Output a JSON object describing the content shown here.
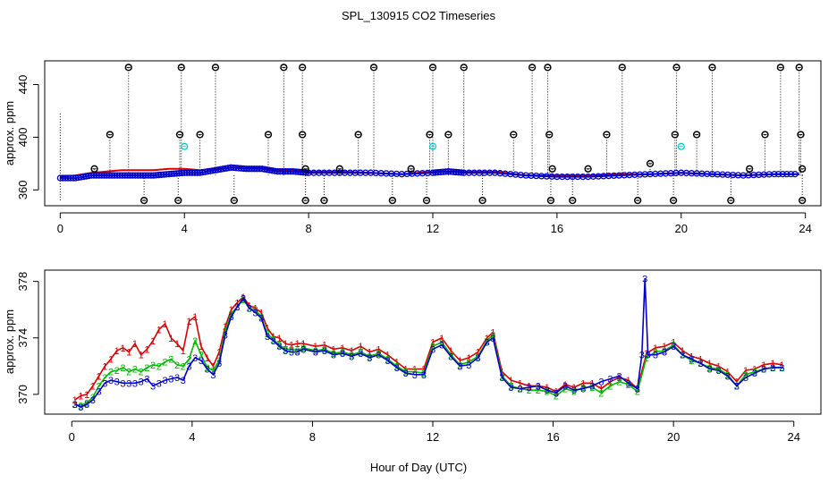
{
  "figure": {
    "title": "SPL_130915  CO2 Timeseries",
    "xlabel": "Hour of Day (UTC)"
  },
  "colors": {
    "ch1": "#dd0000",
    "ch2": "#00bb00",
    "ch3": "#0000cc",
    "flag": "#00cccc",
    "ref": "#000000"
  },
  "chart_data": [
    {
      "type": "scatter",
      "panel": "top",
      "ylabel": "approx. ppm",
      "xlim": [
        -0.5,
        24.5
      ],
      "ylim": [
        348,
        458
      ],
      "x_ticks": [
        "0",
        "4",
        "8",
        "12",
        "16",
        "20",
        "24"
      ],
      "x_tick_values": [
        0,
        4,
        8,
        12,
        16,
        20,
        24
      ],
      "y_ticks": [
        "360",
        "400",
        "440"
      ],
      "y_tick_values": [
        360,
        400,
        440
      ],
      "markers": [
        {
          "x": 1.1,
          "y": 376
        },
        {
          "x": 1.6,
          "y": 402
        },
        {
          "x": 2.2,
          "y": 453
        },
        {
          "x": 2.7,
          "y": 352
        },
        {
          "x": 3.8,
          "y": 352
        },
        {
          "x": 3.85,
          "y": 402
        },
        {
          "x": 3.9,
          "y": 453
        },
        {
          "x": 4.5,
          "y": 402
        },
        {
          "x": 5.0,
          "y": 453
        },
        {
          "x": 5.6,
          "y": 352
        },
        {
          "x": 6.7,
          "y": 402
        },
        {
          "x": 7.2,
          "y": 453
        },
        {
          "x": 7.8,
          "y": 453
        },
        {
          "x": 7.8,
          "y": 402
        },
        {
          "x": 7.9,
          "y": 352
        },
        {
          "x": 7.9,
          "y": 376
        },
        {
          "x": 8.5,
          "y": 352
        },
        {
          "x": 9.0,
          "y": 376
        },
        {
          "x": 9.6,
          "y": 402
        },
        {
          "x": 10.1,
          "y": 453
        },
        {
          "x": 10.7,
          "y": 352
        },
        {
          "x": 11.3,
          "y": 376
        },
        {
          "x": 11.8,
          "y": 352
        },
        {
          "x": 11.9,
          "y": 402
        },
        {
          "x": 12.0,
          "y": 453
        },
        {
          "x": 12.5,
          "y": 402
        },
        {
          "x": 13.0,
          "y": 453
        },
        {
          "x": 13.6,
          "y": 352
        },
        {
          "x": 14.6,
          "y": 402
        },
        {
          "x": 15.2,
          "y": 453
        },
        {
          "x": 15.7,
          "y": 453
        },
        {
          "x": 15.75,
          "y": 402
        },
        {
          "x": 15.8,
          "y": 352
        },
        {
          "x": 15.85,
          "y": 376
        },
        {
          "x": 16.5,
          "y": 352
        },
        {
          "x": 17.0,
          "y": 376
        },
        {
          "x": 17.6,
          "y": 402
        },
        {
          "x": 18.1,
          "y": 453
        },
        {
          "x": 18.6,
          "y": 352
        },
        {
          "x": 19.0,
          "y": 380
        },
        {
          "x": 19.8,
          "y": 402
        },
        {
          "x": 19.85,
          "y": 453
        },
        {
          "x": 19.75,
          "y": 352
        },
        {
          "x": 20.5,
          "y": 402
        },
        {
          "x": 21.0,
          "y": 453
        },
        {
          "x": 21.6,
          "y": 352
        },
        {
          "x": 22.2,
          "y": 376
        },
        {
          "x": 22.7,
          "y": 402
        },
        {
          "x": 23.2,
          "y": 453
        },
        {
          "x": 23.8,
          "y": 453
        },
        {
          "x": 23.85,
          "y": 402
        },
        {
          "x": 23.9,
          "y": 352
        },
        {
          "x": 23.9,
          "y": 376
        }
      ],
      "flags": [
        {
          "x": 4.0,
          "y": 393
        },
        {
          "x": 12.0,
          "y": 393
        },
        {
          "x": 20.0,
          "y": 393
        }
      ],
      "series": [
        {
          "key": "ch1",
          "x": [
            0,
            0.5,
            1,
            1.5,
            2,
            2.5,
            3,
            3.5,
            4,
            4.5,
            5,
            5.5,
            6,
            6.5,
            7,
            7.5,
            8,
            9,
            10,
            11,
            12,
            12.5,
            13,
            14,
            15,
            16,
            17,
            18,
            19,
            20,
            21,
            22,
            23,
            23.8
          ],
          "y": [
            370,
            371,
            373,
            374,
            375,
            375,
            375,
            376,
            376,
            375,
            376,
            377,
            377,
            377,
            375,
            375,
            374,
            374,
            373,
            372,
            374,
            374,
            374,
            374,
            371,
            371,
            371,
            372,
            372,
            373,
            372,
            371,
            372,
            372
          ]
        },
        {
          "key": "ch3",
          "x": [
            0,
            0.5,
            1,
            1.5,
            2,
            2.5,
            3,
            3.5,
            4,
            4.5,
            5,
            5.5,
            6,
            6.5,
            7,
            7.5,
            8,
            9,
            10,
            11,
            12,
            12.5,
            13,
            14,
            15,
            16,
            17,
            18,
            19,
            20,
            21,
            22,
            23,
            23.8
          ],
          "y": [
            369,
            369,
            371,
            371,
            371,
            371,
            371,
            372,
            373,
            373,
            375,
            377,
            376,
            376,
            374,
            374,
            373,
            373,
            373,
            372,
            373,
            374,
            373,
            373,
            371,
            370,
            370,
            371,
            372,
            373,
            372,
            371,
            372,
            372
          ]
        }
      ]
    },
    {
      "type": "line",
      "panel": "bottom",
      "ylabel": "approx. ppm",
      "xlim": [
        -0.9,
        24.9
      ],
      "ylim": [
        368.6,
        378.8
      ],
      "x_ticks": [
        "0",
        "4",
        "8",
        "12",
        "16",
        "20",
        "24"
      ],
      "x_tick_values": [
        0,
        4,
        8,
        12,
        16,
        20,
        24
      ],
      "y_ticks": [
        "370",
        "374",
        "378"
      ],
      "y_tick_values": [
        370,
        374,
        378
      ],
      "series": [
        {
          "key": "ch1",
          "symbol": "1",
          "x": [
            0.1,
            0.3,
            0.5,
            0.7,
            0.9,
            1.1,
            1.3,
            1.5,
            1.7,
            1.9,
            2.1,
            2.3,
            2.5,
            2.7,
            2.9,
            3.1,
            3.3,
            3.5,
            3.7,
            3.9,
            4.1,
            4.3,
            4.5,
            4.7,
            4.9,
            5.1,
            5.3,
            5.5,
            5.7,
            5.9,
            6.1,
            6.3,
            6.5,
            6.7,
            6.9,
            7.1,
            7.3,
            7.5,
            7.7,
            8.1,
            8.4,
            8.7,
            9.0,
            9.3,
            9.6,
            9.9,
            10.2,
            10.5,
            10.8,
            11.1,
            11.4,
            11.7,
            12.0,
            12.3,
            12.6,
            12.9,
            13.2,
            13.5,
            13.8,
            14.0,
            14.3,
            14.6,
            14.9,
            15.2,
            15.5,
            15.8,
            16.1,
            16.4,
            16.7,
            17.0,
            17.3,
            17.6,
            17.9,
            18.2,
            18.5,
            18.8,
            19.1,
            19.4,
            19.7,
            20.0,
            20.3,
            20.6,
            20.9,
            21.2,
            21.5,
            21.8,
            22.1,
            22.4,
            22.7,
            23.0,
            23.3,
            23.6
          ],
          "y": [
            369.6,
            369.9,
            370.0,
            370.6,
            371.3,
            372.0,
            372.5,
            373.1,
            373.3,
            373.0,
            373.6,
            372.8,
            373.2,
            373.8,
            374.6,
            375.0,
            374.0,
            373.6,
            373.1,
            375.2,
            375.5,
            373.4,
            372.6,
            372.0,
            373.0,
            374.8,
            376.0,
            376.5,
            376.9,
            376.3,
            376.1,
            375.8,
            374.7,
            374.1,
            374.0,
            373.6,
            373.5,
            373.6,
            373.6,
            373.4,
            373.5,
            373.2,
            373.3,
            373.1,
            373.4,
            373.0,
            373.2,
            372.8,
            372.3,
            371.8,
            371.8,
            371.8,
            373.7,
            374.0,
            373.1,
            372.4,
            372.6,
            373.0,
            374.0,
            374.4,
            371.6,
            371.0,
            370.8,
            370.6,
            370.6,
            370.5,
            370.2,
            370.7,
            370.5,
            370.8,
            370.8,
            370.4,
            370.9,
            371.2,
            371.0,
            370.4,
            372.9,
            373.3,
            373.4,
            373.7,
            373.1,
            372.7,
            372.5,
            372.2,
            372.0,
            371.6,
            370.9,
            371.7,
            371.8,
            372.1,
            372.2,
            372.1
          ]
        },
        {
          "key": "ch2",
          "symbol": "2",
          "x": [
            0.1,
            0.3,
            0.5,
            0.7,
            0.9,
            1.1,
            1.3,
            1.5,
            1.7,
            1.9,
            2.1,
            2.3,
            2.5,
            2.7,
            2.9,
            3.1,
            3.3,
            3.5,
            3.7,
            3.9,
            4.1,
            4.3,
            4.5,
            4.7,
            4.9,
            5.1,
            5.3,
            5.5,
            5.7,
            5.9,
            6.1,
            6.3,
            6.5,
            6.7,
            6.9,
            7.1,
            7.3,
            7.5,
            7.7,
            8.1,
            8.4,
            8.7,
            9.0,
            9.3,
            9.6,
            9.9,
            10.2,
            10.5,
            10.8,
            11.1,
            11.4,
            11.7,
            12.0,
            12.3,
            12.6,
            12.9,
            13.2,
            13.5,
            13.8,
            14.0,
            14.3,
            14.6,
            14.9,
            15.2,
            15.5,
            15.8,
            16.1,
            16.4,
            16.7,
            17.0,
            17.3,
            17.6,
            17.9,
            18.2,
            18.5,
            18.8,
            19.1,
            19.4,
            19.7,
            20.0,
            20.3,
            20.6,
            20.9,
            21.2,
            21.5,
            21.8,
            22.1,
            22.4,
            22.7,
            23.0,
            23.3,
            23.6
          ],
          "y": [
            369.3,
            369.2,
            369.4,
            369.8,
            370.6,
            371.2,
            371.6,
            371.7,
            371.9,
            371.6,
            371.8,
            371.6,
            371.9,
            372.1,
            372.0,
            372.3,
            372.5,
            372.1,
            372.0,
            372.5,
            373.8,
            372.8,
            371.9,
            371.7,
            372.4,
            374.5,
            375.7,
            376.2,
            376.7,
            376.1,
            376.0,
            375.5,
            374.3,
            373.9,
            373.5,
            373.2,
            373.2,
            373.1,
            373.3,
            373.1,
            373.2,
            372.9,
            373.0,
            372.8,
            373.0,
            372.7,
            372.9,
            372.5,
            372.0,
            371.6,
            371.6,
            371.5,
            373.4,
            373.7,
            372.8,
            372.1,
            372.3,
            372.7,
            373.8,
            374.2,
            371.3,
            370.6,
            370.4,
            370.3,
            370.3,
            370.2,
            369.9,
            370.4,
            370.2,
            370.5,
            370.5,
            370.1,
            370.6,
            370.9,
            370.7,
            370.2,
            372.6,
            373.0,
            373.1,
            373.5,
            372.8,
            372.4,
            372.2,
            371.9,
            371.8,
            371.4,
            370.6,
            371.4,
            371.6,
            371.8,
            371.9,
            371.9
          ]
        },
        {
          "key": "ch3",
          "symbol": "3",
          "x": [
            0.1,
            0.3,
            0.5,
            0.7,
            0.9,
            1.1,
            1.3,
            1.5,
            1.7,
            1.9,
            2.1,
            2.3,
            2.5,
            2.7,
            2.9,
            3.1,
            3.3,
            3.5,
            3.7,
            3.9,
            4.1,
            4.3,
            4.5,
            4.7,
            4.9,
            5.1,
            5.3,
            5.5,
            5.7,
            5.9,
            6.1,
            6.3,
            6.5,
            6.7,
            6.9,
            7.1,
            7.3,
            7.5,
            7.7,
            8.1,
            8.4,
            8.7,
            9.0,
            9.3,
            9.6,
            9.9,
            10.2,
            10.5,
            10.8,
            11.1,
            11.4,
            11.7,
            12.0,
            12.3,
            12.6,
            12.9,
            13.2,
            13.5,
            13.8,
            14.0,
            14.3,
            14.6,
            14.9,
            15.2,
            15.5,
            15.8,
            16.1,
            16.4,
            16.7,
            17.0,
            17.3,
            17.6,
            17.9,
            18.2,
            18.5,
            18.8,
            18.95,
            19.05,
            19.15,
            19.4,
            19.7,
            20.0,
            20.3,
            20.6,
            20.9,
            21.2,
            21.5,
            21.8,
            22.1,
            22.4,
            22.7,
            23.0,
            23.3,
            23.6
          ],
          "y": [
            369.3,
            369.1,
            369.3,
            369.6,
            370.2,
            370.8,
            371.0,
            370.9,
            370.8,
            370.8,
            370.8,
            370.9,
            371.1,
            370.6,
            370.8,
            371.0,
            371.1,
            371.2,
            371.0,
            372.0,
            372.6,
            372.4,
            371.8,
            371.4,
            372.2,
            374.2,
            375.5,
            376.2,
            376.8,
            376.1,
            375.8,
            375.4,
            374.1,
            373.8,
            373.4,
            373.1,
            373.0,
            373.0,
            373.2,
            373.0,
            373.1,
            372.8,
            372.9,
            372.7,
            372.9,
            372.6,
            372.8,
            372.4,
            371.9,
            371.5,
            371.4,
            371.4,
            373.2,
            373.5,
            372.7,
            372.0,
            372.1,
            372.6,
            373.7,
            374.0,
            371.2,
            370.5,
            370.4,
            370.5,
            370.6,
            370.3,
            370.1,
            370.6,
            370.3,
            370.4,
            370.6,
            370.9,
            371.1,
            371.3,
            370.8,
            370.4,
            372.8,
            378.2,
            372.8,
            372.8,
            373.0,
            373.4,
            372.8,
            372.5,
            372.2,
            371.8,
            371.7,
            371.3,
            370.6,
            371.2,
            371.5,
            371.8,
            371.9,
            371.9
          ]
        }
      ]
    }
  ]
}
